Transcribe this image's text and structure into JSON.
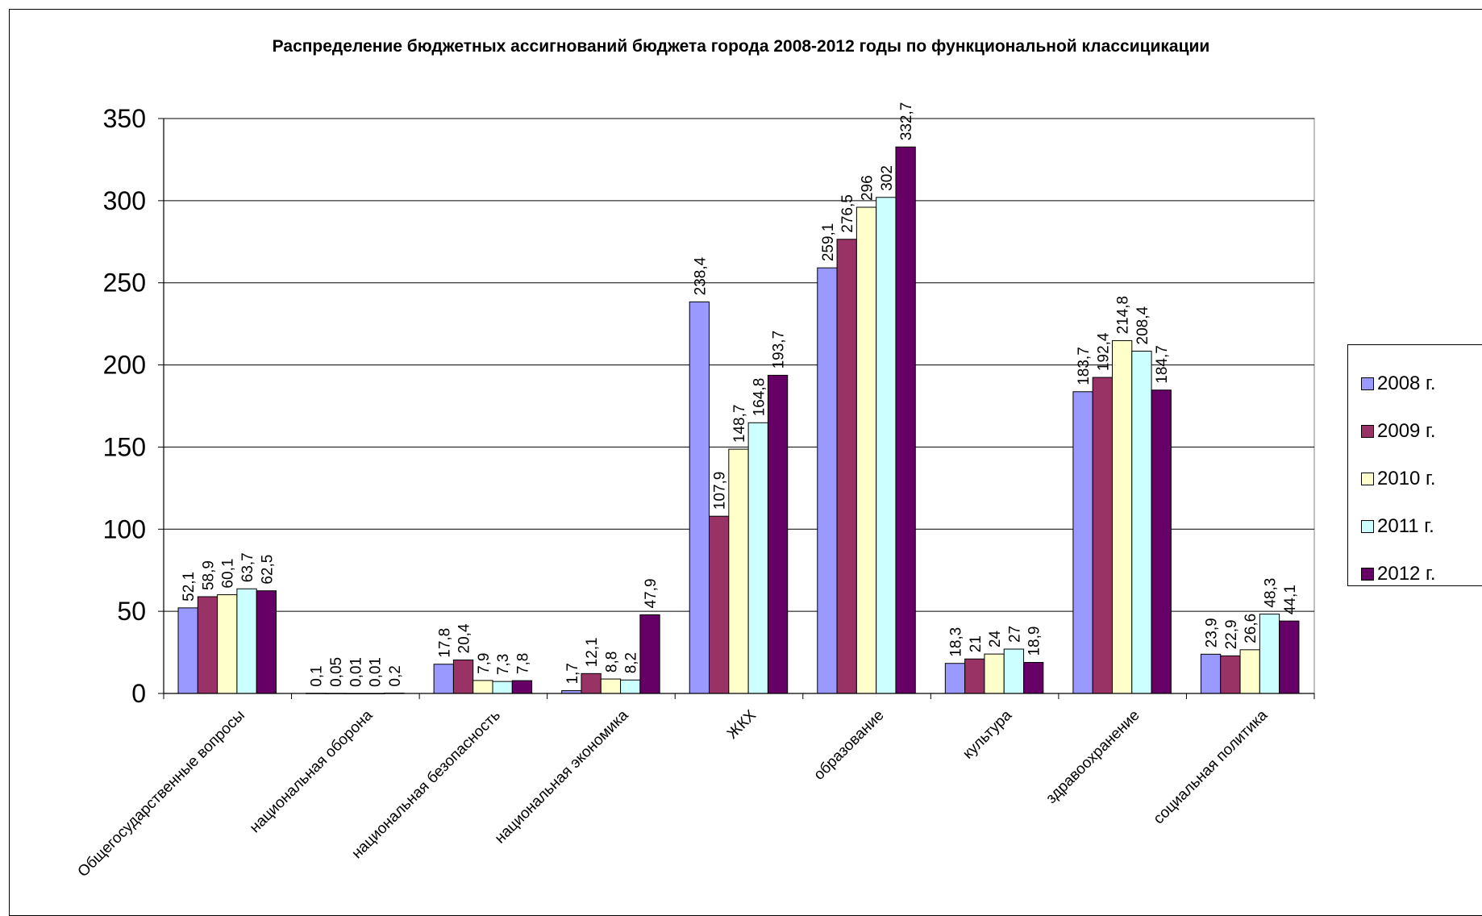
{
  "chart_data": {
    "type": "bar",
    "title": "Распределение бюджетных ассигнований бюджета города 2008-2012 годы по функциональной классицикации",
    "categories": [
      "Общегосударственные вопросы",
      "национальная оборона",
      "национальная безопасность",
      "национальная экономика",
      "ЖКХ",
      "образование",
      "культура",
      "здравоохранение",
      "социальная политика"
    ],
    "series": [
      {
        "name": "2008 г.",
        "color": "#9999ff",
        "values": [
          52.1,
          0.1,
          17.8,
          1.7,
          238.4,
          259.1,
          18.3,
          183.7,
          23.9
        ],
        "labels": [
          "52,1",
          "0,1",
          "17,8",
          "1,7",
          "238,4",
          "259,1",
          "18,3",
          "183,7",
          "23,9"
        ]
      },
      {
        "name": "2009 г.",
        "color": "#993366",
        "values": [
          58.9,
          0.05,
          20.4,
          12.1,
          107.9,
          276.5,
          21,
          192.4,
          22.9
        ],
        "labels": [
          "58,9",
          "0,05",
          "20,4",
          "12,1",
          "107,9",
          "276,5",
          "21",
          "192,4",
          "22,9"
        ]
      },
      {
        "name": "2010 г.",
        "color": "#ffffcc",
        "values": [
          60.1,
          0.01,
          7.9,
          8.8,
          148.7,
          296,
          24,
          214.8,
          26.6
        ],
        "labels": [
          "60,1",
          "0,01",
          "7,9",
          "8,8",
          "148,7",
          "296",
          "24",
          "214,8",
          "26,6"
        ]
      },
      {
        "name": "2011 г.",
        "color": "#ccffff",
        "values": [
          63.7,
          0.01,
          7.3,
          8.2,
          164.8,
          302,
          27,
          208.4,
          48.3
        ],
        "labels": [
          "63,7",
          "0,01",
          "7,3",
          "8,2",
          "164,8",
          "302",
          "27",
          "208,4",
          "48,3"
        ]
      },
      {
        "name": "2012 г.",
        "color": "#660066",
        "values": [
          62.5,
          0.2,
          7.8,
          47.9,
          193.7,
          332.7,
          18.9,
          184.7,
          44.1
        ],
        "labels": [
          "62,5",
          "0,2",
          "7,8",
          "47,9",
          "193,7",
          "332,7",
          "18,9",
          "184,7",
          "44,1"
        ]
      }
    ],
    "yticks": [
      "0",
      "50",
      "100",
      "150",
      "200",
      "250",
      "300",
      "350"
    ],
    "ylim": [
      0,
      350
    ],
    "xlabel": "",
    "ylabel": "",
    "grid": true,
    "legend_position": "right"
  }
}
